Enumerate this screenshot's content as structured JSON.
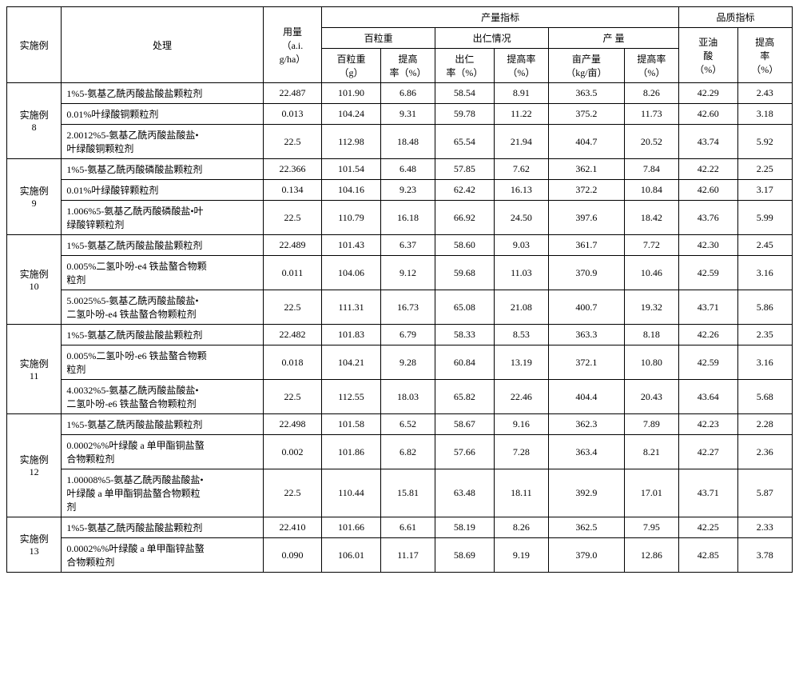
{
  "header": {
    "example": "实施例",
    "treatment": "处理",
    "dosage": "用量\n（a.i.\ng/ha）",
    "yield_idx": "产量指标",
    "quality_idx": "品质指标",
    "weight100": "百粒重",
    "kernel": "出仁情况",
    "yield": "产  量",
    "weight100_g": "百粒重\n（g）",
    "improve_rate": "提高\n率（%）",
    "kernel_rate": "出仁\n率（%）",
    "improve_rate2": "提高率\n（%）",
    "mu_yield": "亩产量\n（kg/亩）",
    "improve_rate3": "提高率\n（%）",
    "oleic": "亚油\n酸\n（%）",
    "improve_rate4": "提高\n率\n（%）"
  },
  "groups": [
    {
      "label": "实施例\n8",
      "rows": [
        {
          "treat": "1%5-氨基乙酰丙酸盐酸盐颗粒剂",
          "dose": "22.487",
          "w100": "101.90",
          "r1": "6.86",
          "ker": "58.54",
          "r2": "8.91",
          "mu": "363.5",
          "r3": "8.26",
          "oleic": "42.29",
          "r4": "2.43"
        },
        {
          "treat": "0.01%叶绿酸铜颗粒剂",
          "dose": "0.013",
          "w100": "104.24",
          "r1": "9.31",
          "ker": "59.78",
          "r2": "11.22",
          "mu": "375.2",
          "r3": "11.73",
          "oleic": "42.60",
          "r4": "3.18"
        },
        {
          "treat": "2.0012%5-氨基乙酰丙酸盐酸盐•\n叶绿酸铜颗粒剂",
          "dose": "22.5",
          "w100": "112.98",
          "r1": "18.48",
          "ker": "65.54",
          "r2": "21.94",
          "mu": "404.7",
          "r3": "20.52",
          "oleic": "43.74",
          "r4": "5.92"
        }
      ]
    },
    {
      "label": "实施例\n9",
      "rows": [
        {
          "treat": "1%5-氨基乙酰丙酸磷酸盐颗粒剂",
          "dose": "22.366",
          "w100": "101.54",
          "r1": "6.48",
          "ker": "57.85",
          "r2": "7.62",
          "mu": "362.1",
          "r3": "7.84",
          "oleic": "42.22",
          "r4": "2.25"
        },
        {
          "treat": "0.01%叶绿酸锌颗粒剂",
          "dose": "0.134",
          "w100": "104.16",
          "r1": "9.23",
          "ker": "62.42",
          "r2": "16.13",
          "mu": "372.2",
          "r3": "10.84",
          "oleic": "42.60",
          "r4": "3.17"
        },
        {
          "treat": "1.006%5-氨基乙酰丙酸磷酸盐•叶\n绿酸锌颗粒剂",
          "dose": "22.5",
          "w100": "110.79",
          "r1": "16.18",
          "ker": "66.92",
          "r2": "24.50",
          "mu": "397.6",
          "r3": "18.42",
          "oleic": "43.76",
          "r4": "5.99"
        }
      ]
    },
    {
      "label": "实施例\n10",
      "rows": [
        {
          "treat": "1%5-氨基乙酰丙酸盐酸盐颗粒剂",
          "dose": "22.489",
          "w100": "101.43",
          "r1": "6.37",
          "ker": "58.60",
          "r2": "9.03",
          "mu": "361.7",
          "r3": "7.72",
          "oleic": "42.30",
          "r4": "2.45"
        },
        {
          "treat": "0.005%二氢卟吩-e4 铁盐螯合物颗\n粒剂",
          "dose": "0.011",
          "w100": "104.06",
          "r1": "9.12",
          "ker": "59.68",
          "r2": "11.03",
          "mu": "370.9",
          "r3": "10.46",
          "oleic": "42.59",
          "r4": "3.16"
        },
        {
          "treat": "5.0025%5-氨基乙酰丙酸盐酸盐•\n二氢卟吩-e4 铁盐螯合物颗粒剂",
          "dose": "22.5",
          "w100": "111.31",
          "r1": "16.73",
          "ker": "65.08",
          "r2": "21.08",
          "mu": "400.7",
          "r3": "19.32",
          "oleic": "43.71",
          "r4": "5.86"
        }
      ]
    },
    {
      "label": "实施例\n11",
      "rows": [
        {
          "treat": "1%5-氨基乙酰丙酸盐酸盐颗粒剂",
          "dose": "22.482",
          "w100": "101.83",
          "r1": "6.79",
          "ker": "58.33",
          "r2": "8.53",
          "mu": "363.3",
          "r3": "8.18",
          "oleic": "42.26",
          "r4": "2.35"
        },
        {
          "treat": "0.005%二氢卟吩-e6 铁盐螯合物颗\n粒剂",
          "dose": "0.018",
          "w100": "104.21",
          "r1": "9.28",
          "ker": "60.84",
          "r2": "13.19",
          "mu": "372.1",
          "r3": "10.80",
          "oleic": "42.59",
          "r4": "3.16"
        },
        {
          "treat": "4.0032%5-氨基乙酰丙酸盐酸盐•\n二氢卟吩-e6 铁盐螯合物颗粒剂",
          "dose": "22.5",
          "w100": "112.55",
          "r1": "18.03",
          "ker": "65.82",
          "r2": "22.46",
          "mu": "404.4",
          "r3": "20.43",
          "oleic": "43.64",
          "r4": "5.68"
        }
      ]
    },
    {
      "label": "实施例\n12",
      "rows": [
        {
          "treat": "1%5-氨基乙酰丙酸盐酸盐颗粒剂",
          "dose": "22.498",
          "w100": "101.58",
          "r1": "6.52",
          "ker": "58.67",
          "r2": "9.16",
          "mu": "362.3",
          "r3": "7.89",
          "oleic": "42.23",
          "r4": "2.28"
        },
        {
          "treat": "0.0002%%叶绿酸 a 单甲酯铜盐螯\n合物颗粒剂",
          "dose": "0.002",
          "w100": "101.86",
          "r1": "6.82",
          "ker": "57.66",
          "r2": "7.28",
          "mu": "363.4",
          "r3": "8.21",
          "oleic": "42.27",
          "r4": "2.36"
        },
        {
          "treat": "1.00008%5-氨基乙酰丙酸盐酸盐•\n叶绿酸 a 单甲酯铜盐螯合物颗粒\n剂",
          "dose": "22.5",
          "w100": "110.44",
          "r1": "15.81",
          "ker": "63.48",
          "r2": "18.11",
          "mu": "392.9",
          "r3": "17.01",
          "oleic": "43.71",
          "r4": "5.87"
        }
      ]
    },
    {
      "label": "实施例\n13",
      "rows": [
        {
          "treat": "1%5-氨基乙酰丙酸盐酸盐颗粒剂",
          "dose": "22.410",
          "w100": "101.66",
          "r1": "6.61",
          "ker": "58.19",
          "r2": "8.26",
          "mu": "362.5",
          "r3": "7.95",
          "oleic": "42.25",
          "r4": "2.33"
        },
        {
          "treat": "0.0002%%叶绿酸 a 单甲酯锌盐螯\n合物颗粒剂",
          "dose": "0.090",
          "w100": "106.01",
          "r1": "11.17",
          "ker": "58.69",
          "r2": "9.19",
          "mu": "379.0",
          "r3": "12.86",
          "oleic": "42.85",
          "r4": "3.78"
        }
      ]
    }
  ]
}
